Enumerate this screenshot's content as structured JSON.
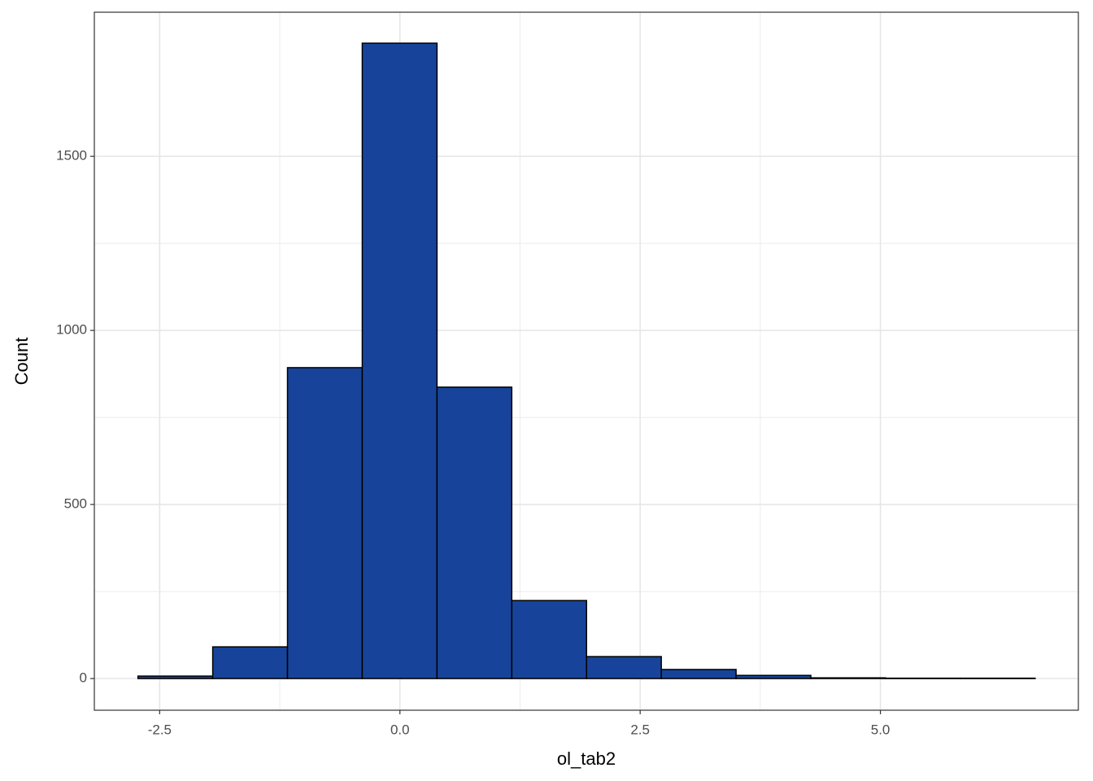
{
  "chart_data": {
    "type": "histogram",
    "x_label": "ol_tab2",
    "y_label": "Count",
    "bins": [
      -2.726,
      -1.948,
      -1.17,
      -0.392,
      0.386,
      1.164,
      1.942,
      2.72,
      3.498,
      4.276,
      5.054,
      5.832,
      6.61
    ],
    "values": [
      7,
      91,
      893,
      1825,
      837,
      224,
      63,
      26,
      9,
      2,
      1,
      1
    ],
    "color": "#17449a",
    "edge_color": "#000000",
    "xlim": [
      -3.18,
      7.06
    ],
    "ylim": [
      -91,
      1914
    ],
    "xticks": [
      -2.5,
      {
        "value": 0,
        "label": "0.0"
      },
      2.5,
      {
        "value": 5,
        "label": "5.0"
      }
    ],
    "yticks": [
      0,
      500,
      1000,
      1500
    ],
    "grid": true
  }
}
